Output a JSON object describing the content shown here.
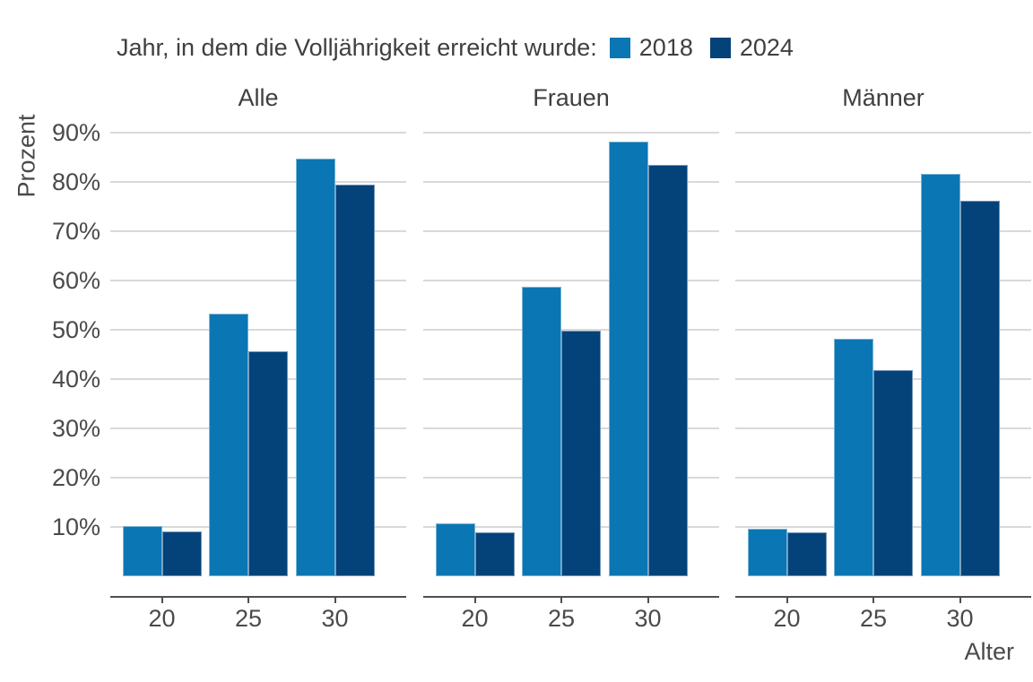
{
  "legend": {
    "title": "Jahr, in dem die Volljährigkeit erreicht wurde:",
    "items": [
      {
        "label": "2018",
        "color": "#0b76b4"
      },
      {
        "label": "2024",
        "color": "#04427a"
      }
    ]
  },
  "chart_data": {
    "type": "bar",
    "title": "",
    "legend_title": "Jahr, in dem die Volljährigkeit erreicht wurde:",
    "xlabel": "Alter",
    "ylabel": "Prozent",
    "categories": [
      "20",
      "25",
      "30"
    ],
    "y_tick_labels": [
      "10%",
      "20%",
      "30%",
      "40%",
      "50%",
      "60%",
      "70%",
      "80%",
      "90%"
    ],
    "ylim": [
      0,
      90
    ],
    "grid": "horizontal-only",
    "legend_position": "top",
    "series_names": [
      "2018",
      "2024"
    ],
    "colors": {
      "2018": "#0b76b4",
      "2024": "#04427a"
    },
    "facets": [
      {
        "label": "Alle",
        "series": [
          {
            "name": "2018",
            "values": [
              10.2,
              53.3,
              84.8
            ]
          },
          {
            "name": "2024",
            "values": [
              9.1,
              45.6,
              79.4
            ]
          }
        ]
      },
      {
        "label": "Frauen",
        "series": [
          {
            "name": "2018",
            "values": [
              10.7,
              58.8,
              88.1
            ]
          },
          {
            "name": "2024",
            "values": [
              8.9,
              49.9,
              83.4
            ]
          }
        ]
      },
      {
        "label": "Männer",
        "series": [
          {
            "name": "2018",
            "values": [
              9.7,
              48.1,
              81.7
            ]
          },
          {
            "name": "2024",
            "values": [
              8.9,
              41.8,
              76.2
            ]
          }
        ]
      }
    ]
  }
}
